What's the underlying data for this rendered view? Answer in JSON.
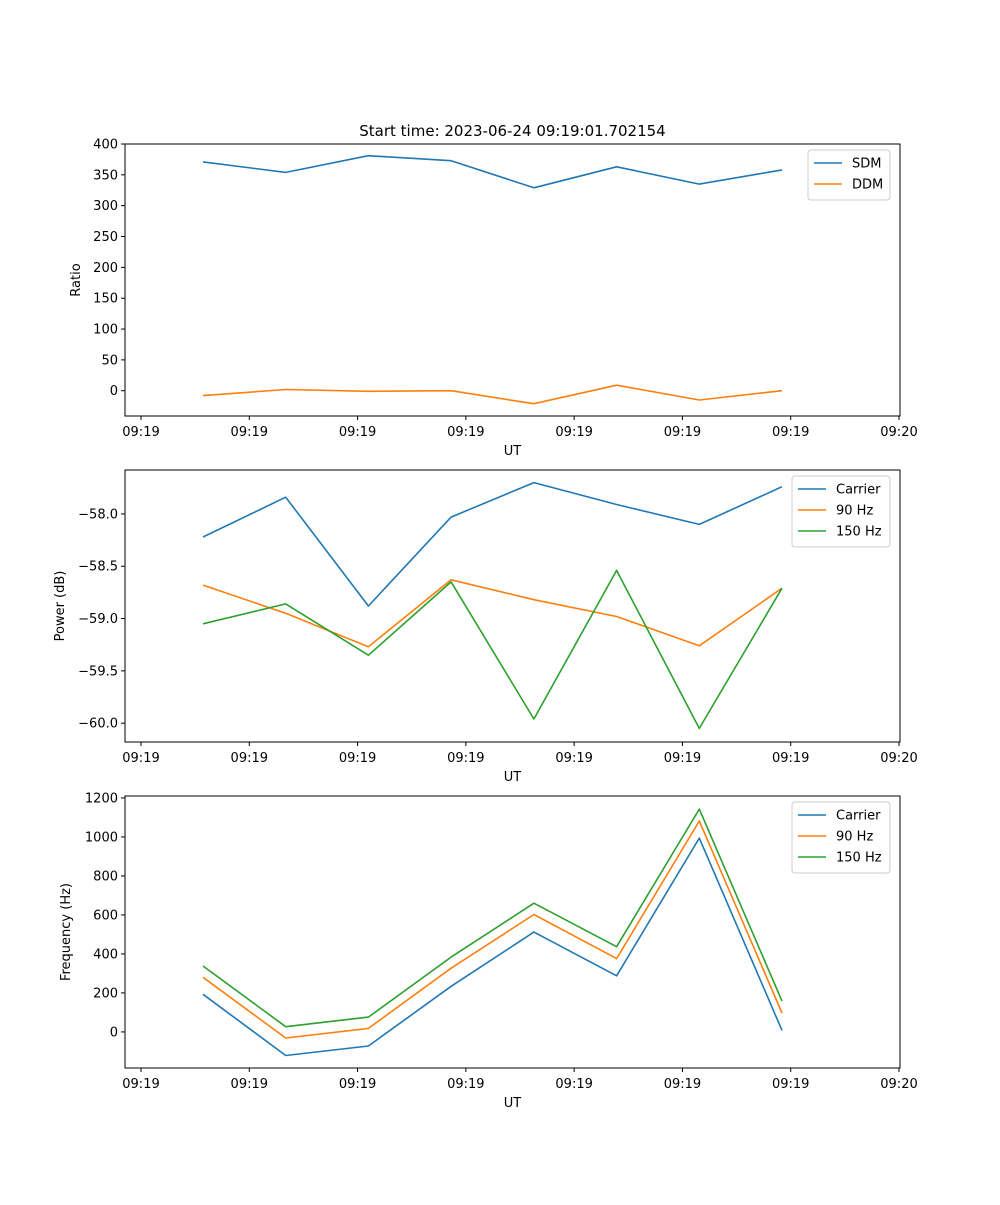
{
  "title": "Start time: 2023-06-24 09:19:01.702154",
  "x_tick_labels": [
    "09:19",
    "09:19",
    "09:19",
    "09:19",
    "09:19",
    "09:19",
    "09:19",
    "09:20"
  ],
  "chart_data": [
    {
      "type": "line",
      "title": "Start time: 2023-06-24 09:19:01.702154",
      "xlabel": "UT",
      "ylabel": "Ratio",
      "x": [
        1,
        2,
        3,
        4,
        5,
        6,
        7,
        8
      ],
      "ylim": [
        -41,
        400
      ],
      "yticks": [
        0,
        50,
        100,
        150,
        200,
        250,
        300,
        350,
        400
      ],
      "grid": false,
      "legend_position": "top-right",
      "series": [
        {
          "name": "SDM",
          "color": "#1f77b4",
          "values": [
            371,
            354,
            381,
            373,
            329,
            363,
            335,
            358
          ]
        },
        {
          "name": "DDM",
          "color": "#ff7f0e",
          "values": [
            -8,
            2,
            -1,
            0,
            -21,
            9,
            -15,
            0
          ]
        }
      ]
    },
    {
      "type": "line",
      "title": "",
      "xlabel": "UT",
      "ylabel": "Power (dB)",
      "x": [
        1,
        2,
        3,
        4,
        5,
        6,
        7,
        8
      ],
      "ylim": [
        -60.18,
        -57.58
      ],
      "yticks": [
        -60.0,
        -59.5,
        -59.0,
        -58.5,
        -58.0
      ],
      "ytick_labels": [
        "−60.0",
        "−59.5",
        "−59.0",
        "−58.5",
        "−58.0"
      ],
      "grid": false,
      "legend_position": "top-right",
      "series": [
        {
          "name": "Carrier",
          "color": "#1f77b4",
          "values": [
            -58.22,
            -57.84,
            -58.88,
            -58.03,
            -57.7,
            -57.91,
            -58.1,
            -57.74
          ]
        },
        {
          "name": "90 Hz",
          "color": "#ff7f0e",
          "values": [
            -58.68,
            -58.95,
            -59.27,
            -58.63,
            -58.82,
            -58.98,
            -59.26,
            -58.71
          ]
        },
        {
          "name": "150 Hz",
          "color": "#2ca02c",
          "values": [
            -59.05,
            -58.86,
            -59.35,
            -58.65,
            -59.96,
            -58.54,
            -60.05,
            -58.71
          ]
        }
      ]
    },
    {
      "type": "line",
      "title": "",
      "xlabel": "UT",
      "ylabel": "Frequency (Hz)",
      "x": [
        1,
        2,
        3,
        4,
        5,
        6,
        7,
        8
      ],
      "ylim": [
        -185,
        1210
      ],
      "yticks": [
        0,
        200,
        400,
        600,
        800,
        1000,
        1200
      ],
      "grid": false,
      "legend_position": "top-right",
      "series": [
        {
          "name": "Carrier",
          "color": "#1f77b4",
          "values": [
            193,
            -121,
            -72,
            234,
            512,
            288,
            994,
            8
          ]
        },
        {
          "name": "90 Hz",
          "color": "#ff7f0e",
          "values": [
            280,
            -31,
            18,
            327,
            602,
            376,
            1082,
            97
          ]
        },
        {
          "name": "150 Hz",
          "color": "#2ca02c",
          "values": [
            338,
            27,
            76,
            384,
            660,
            437,
            1143,
            158
          ]
        }
      ]
    }
  ]
}
